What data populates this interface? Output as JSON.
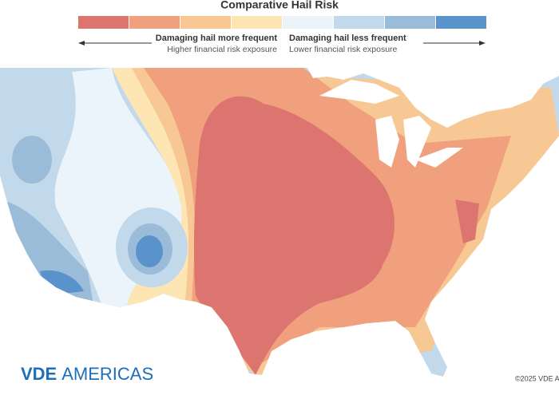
{
  "legend": {
    "title": "Comparative Hail Risk",
    "colors": [
      "#dc7470",
      "#f0a07c",
      "#f8c894",
      "#fde6b4",
      "#eaf4fa",
      "#c1d9ea",
      "#9bbcd8",
      "#5a92cc"
    ],
    "more": {
      "label": "Damaging hail more frequent",
      "note": "Higher financial risk exposure"
    },
    "less": {
      "label": "Damaging hail less frequent",
      "note": "Lower financial risk exposure"
    }
  },
  "brand": {
    "bold": "VDE",
    "light": "AMERICAS"
  },
  "copyright": "©2025 VDE A"
}
